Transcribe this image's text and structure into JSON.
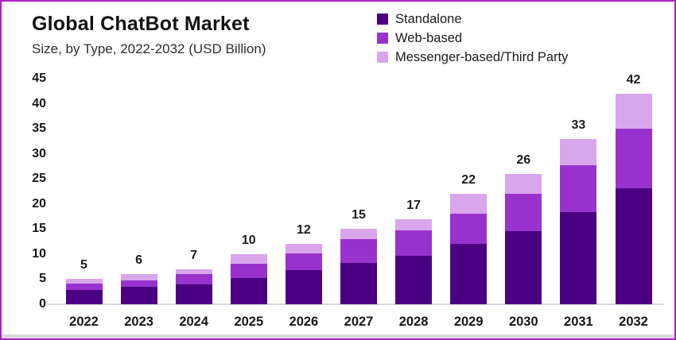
{
  "header": {
    "title": "Global ChatBot Market",
    "subtitle": "Size, by Type, 2022-2032 (USD Billion)"
  },
  "colors": {
    "standalone": "#4B0082",
    "web_based": "#9932CC",
    "messenger": "#D9A6EC",
    "frame_border": "#B01FC6",
    "axis_line": "#D8D8D8",
    "text": "#1A1A1A"
  },
  "legend": [
    {
      "label": "Standalone",
      "color": "#4B0082"
    },
    {
      "label": "Web-based",
      "color": "#9932CC"
    },
    {
      "label": "Messenger-based/Third Party",
      "color": "#D9A6EC"
    }
  ],
  "chart_data": {
    "type": "bar",
    "stacked": true,
    "title": "Global ChatBot Market",
    "subtitle": "Size, by Type, 2022-2032 (USD Billion)",
    "xlabel": "",
    "ylabel": "",
    "categories": [
      "2022",
      "2023",
      "2024",
      "2025",
      "2026",
      "2027",
      "2028",
      "2029",
      "2030",
      "2031",
      "2032"
    ],
    "series": [
      {
        "name": "Standalone",
        "color": "#4B0082",
        "values": [
          2.8,
          3.5,
          4.0,
          5.2,
          6.8,
          8.2,
          9.7,
          12.0,
          14.5,
          18.4,
          23.2
        ]
      },
      {
        "name": "Web-based",
        "color": "#9932CC",
        "values": [
          1.3,
          1.3,
          2.0,
          2.9,
          3.4,
          4.8,
          5.0,
          6.0,
          7.5,
          9.3,
          11.8
        ]
      },
      {
        "name": "Messenger-based/Third Party",
        "color": "#D9A6EC",
        "values": [
          0.9,
          1.2,
          1.0,
          1.9,
          1.8,
          2.0,
          2.3,
          4.0,
          4.0,
          5.3,
          7.0
        ]
      }
    ],
    "totals": [
      5,
      6,
      7,
      10,
      12,
      15,
      17,
      22,
      26,
      33,
      42
    ],
    "yticks": [
      0,
      5,
      10,
      15,
      20,
      25,
      30,
      35,
      40,
      45
    ],
    "ylim": [
      0,
      45
    ],
    "grid": false,
    "legend_position": "top-right"
  }
}
